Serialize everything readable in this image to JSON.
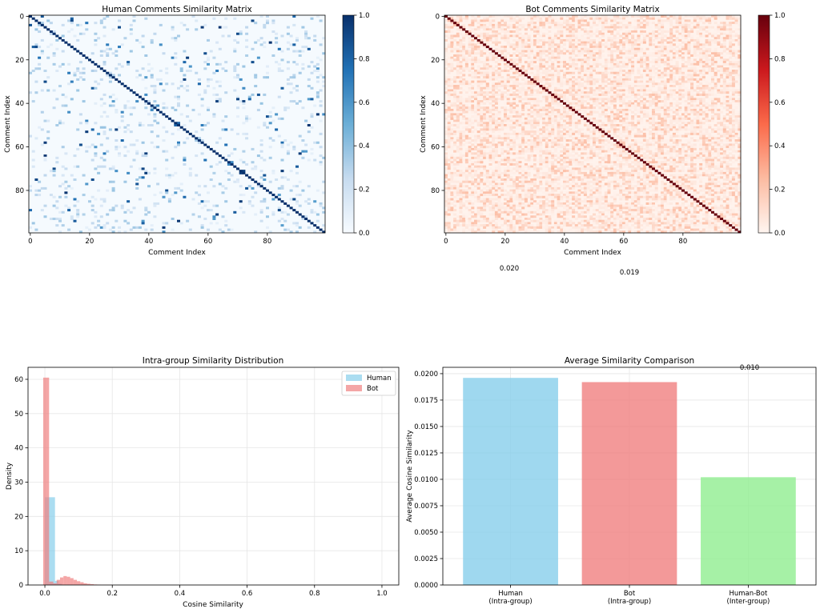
{
  "heatmaps": [
    {
      "title": "Human Comments Similarity Matrix",
      "xlabel": "Comment Index",
      "ylabel": "Comment Index",
      "ticks": [
        "0",
        "20",
        "40",
        "60",
        "80"
      ],
      "colorbar_ticks": [
        "0.0",
        "0.2",
        "0.4",
        "0.6",
        "0.8",
        "1.0"
      ],
      "colormap": "Blues",
      "colors": {
        "low": "#f7fbff",
        "mid": "#6baed6",
        "high": "#08306b"
      }
    },
    {
      "title": "Bot Comments Similarity Matrix",
      "xlabel": "Comment Index",
      "ylabel": "Comment Index",
      "ticks": [
        "0",
        "20",
        "40",
        "60",
        "80"
      ],
      "colorbar_ticks": [
        "0.0",
        "0.2",
        "0.4",
        "0.6",
        "0.8",
        "1.0"
      ],
      "colormap": "Reds",
      "colors": {
        "low": "#fff5f0",
        "mid": "#fb6a4a",
        "high": "#67000d"
      }
    }
  ],
  "stray_labels": [
    "0.020",
    "0.019",
    "0.010"
  ],
  "chart_data": [
    {
      "type": "heatmap",
      "title": "Human Comments Similarity Matrix",
      "size": 100,
      "diagonal": 1.0,
      "value_range": [
        0,
        1
      ],
      "xlabel": "Comment Index",
      "ylabel": "Comment Index"
    },
    {
      "type": "heatmap",
      "title": "Bot Comments Similarity Matrix",
      "size": 100,
      "diagonal": 1.0,
      "value_range": [
        0,
        1
      ],
      "xlabel": "Comment Index",
      "ylabel": "Comment Index"
    },
    {
      "type": "histogram",
      "title": "Intra-group Similarity Distribution",
      "xlabel": "Cosine Similarity",
      "ylabel": "Density",
      "xlim": [
        -0.05,
        1.05
      ],
      "ylim": [
        0,
        63.5
      ],
      "xticks": [
        "0.0",
        "0.2",
        "0.4",
        "0.6",
        "0.8",
        "1.0"
      ],
      "yticks": [
        "0",
        "10",
        "20",
        "30",
        "40",
        "50",
        "60"
      ],
      "legend": "top-right",
      "grid": true,
      "series": [
        {
          "name": "Human",
          "color": "#87ceeb",
          "bins": [
            [
              0.0,
              0.03,
              25.6
            ],
            [
              0.03,
              0.04,
              1.2
            ],
            [
              0.04,
              0.05,
              0.4
            ]
          ]
        },
        {
          "name": "Bot",
          "color": "#f08080",
          "bins": [
            [
              -0.005,
              0.0125,
              60.5
            ],
            [
              0.0125,
              0.025,
              1.0
            ],
            [
              0.025,
              0.035,
              0.5
            ],
            [
              0.035,
              0.045,
              1.5
            ],
            [
              0.045,
              0.055,
              2.2
            ],
            [
              0.055,
              0.065,
              2.6
            ],
            [
              0.065,
              0.075,
              2.4
            ],
            [
              0.075,
              0.085,
              2.0
            ],
            [
              0.085,
              0.095,
              1.5
            ],
            [
              0.095,
              0.105,
              1.1
            ],
            [
              0.105,
              0.115,
              0.8
            ],
            [
              0.115,
              0.125,
              0.5
            ],
            [
              0.125,
              0.135,
              0.35
            ],
            [
              0.135,
              0.145,
              0.25
            ],
            [
              0.145,
              0.155,
              0.15
            ],
            [
              0.155,
              0.165,
              0.1
            ],
            [
              0.165,
              0.2,
              0.05
            ]
          ]
        }
      ]
    },
    {
      "type": "bar",
      "title": "Average Similarity Comparison",
      "ylabel": "Average Cosine Similarity",
      "categories": [
        "Human\n(Intra-group)",
        "Bot\n(Intra-group)",
        "Human-Bot\n(Inter-group)"
      ],
      "values": [
        0.0196,
        0.0192,
        0.0102
      ],
      "colors": [
        "#87ceeb",
        "#f08080",
        "#90ee90"
      ],
      "ylim": [
        0,
        0.0206
      ],
      "yticks": [
        "0.0000",
        "0.0025",
        "0.0050",
        "0.0075",
        "0.0100",
        "0.0125",
        "0.0150",
        "0.0175",
        "0.0200"
      ],
      "grid": true
    }
  ]
}
